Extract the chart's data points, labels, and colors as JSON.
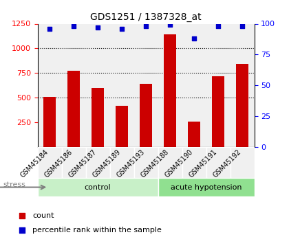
{
  "title": "GDS1251 / 1387328_at",
  "samples": [
    "GSM45184",
    "GSM45186",
    "GSM45187",
    "GSM45189",
    "GSM45193",
    "GSM45188",
    "GSM45190",
    "GSM45191",
    "GSM45192"
  ],
  "counts": [
    510,
    770,
    600,
    415,
    640,
    1140,
    255,
    720,
    840
  ],
  "percentiles": [
    96,
    98,
    97,
    96,
    98,
    99,
    88,
    98,
    98
  ],
  "groups": [
    "control",
    "control",
    "control",
    "control",
    "control",
    "acute hypotension",
    "acute hypotension",
    "acute hypotension",
    "acute hypotension"
  ],
  "group_colors": {
    "control": "#c8f0c8",
    "acute hypotension": "#90e090"
  },
  "bar_color": "#cc0000",
  "dot_color": "#0000cc",
  "ylim_left": [
    0,
    1250
  ],
  "ylim_right": [
    0,
    100
  ],
  "yticks_left": [
    250,
    500,
    750,
    1000,
    1250
  ],
  "yticks_right": [
    0,
    25,
    50,
    75,
    100
  ],
  "grid_lines": [
    500,
    750,
    1000
  ],
  "stress_label": "stress",
  "xlabel_rotation": 45,
  "bg_color": "#f0f0f0"
}
